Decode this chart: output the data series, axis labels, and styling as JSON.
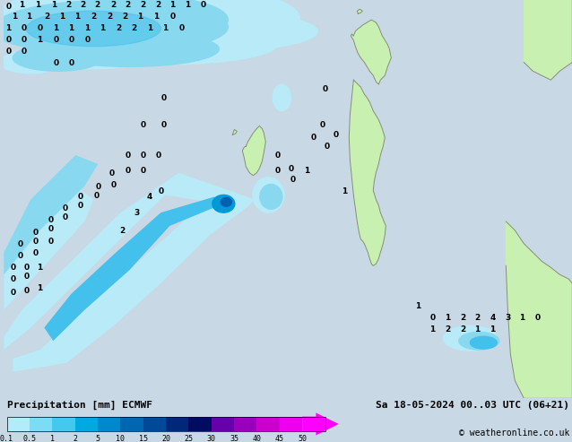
{
  "title_left": "Precipitation [mm] ECMWF",
  "title_right": "Sa 18-05-2024 00..03 UTC (06+21)",
  "copyright": "© weatheronline.co.uk",
  "colorbar_levels": [
    "0.1",
    "0.5",
    "1",
    "2",
    "5",
    "10",
    "15",
    "20",
    "25",
    "30",
    "35",
    "40",
    "45",
    "50"
  ],
  "colorbar_colors": [
    "#b2ecfa",
    "#7ddcf5",
    "#44c8ee",
    "#00aae0",
    "#0088cc",
    "#0066b0",
    "#004898",
    "#002878",
    "#000c60",
    "#6600aa",
    "#9900bb",
    "#cc00cc",
    "#ee00ee",
    "#ff00ff"
  ],
  "ocean_color": "#c8d8e4",
  "land_color": "#c8f0b0",
  "land_outline": "#888888",
  "bottom_bar_color": "#c8d8e4",
  "fig_width": 6.34,
  "fig_height": 4.9,
  "prec_light1": "#b8eaf8",
  "prec_light2": "#88d8f0",
  "prec_mid1": "#44c0ec",
  "prec_mid2": "#0099d8",
  "prec_dark1": "#0060b0",
  "prec_dark2": "#003888"
}
